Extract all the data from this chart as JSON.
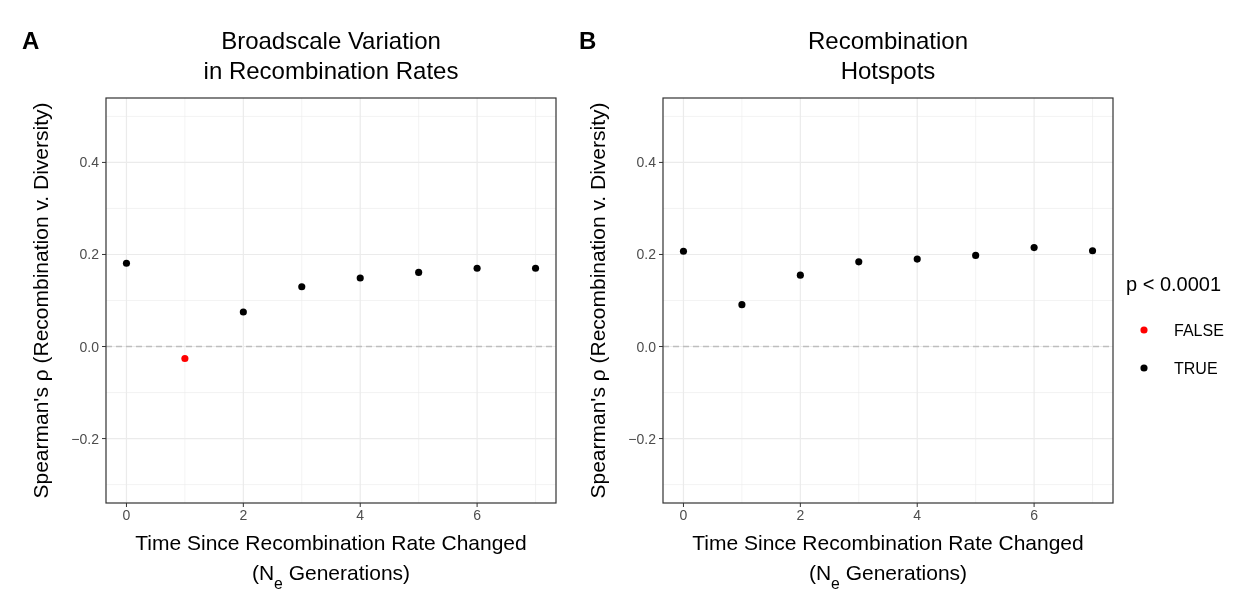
{
  "chart_data": [
    {
      "type": "scatter",
      "title": "Broadscale Variation\nin Recombination Rates",
      "xlabel": "Time Since Recombination Rate Changed\n(N$_{e}$ Generations)",
      "ylabel": "Spearman's ρ (Recombination v. Diversity)",
      "annotations": [
        "A"
      ],
      "series": [
        {
          "color": "#ff0000",
          "x": [
            1
          ],
          "values": [
            -0.026
          ]
        },
        {
          "color": "#000000",
          "x": [
            0,
            2,
            3,
            4,
            5,
            6,
            7
          ],
          "values": [
            0.181,
            0.075,
            0.13,
            0.149,
            0.161,
            0.17,
            0.17
          ]
        }
      ],
      "xlim": [
        -0.35,
        7.35
      ],
      "ylim": [
        -0.34,
        0.54
      ],
      "xticks": [
        0,
        {
          "value": 1,
          "label": null
        },
        2,
        {
          "value": 3,
          "label": null
        },
        4,
        {
          "value": 5,
          "label": null
        },
        6,
        {
          "value": 7,
          "label": null
        }
      ],
      "yticks": [
        {
          "value": -0.3,
          "label": null
        },
        {
          "value": -0.2,
          "label": "−0.2"
        },
        {
          "value": -0.1,
          "label": null
        },
        {
          "value": 0,
          "label": "0.0"
        },
        {
          "value": 0.1,
          "label": null
        },
        {
          "value": 0.2,
          "label": "0.2"
        },
        {
          "value": 0.3,
          "label": null
        },
        {
          "value": 0.4,
          "label": "0.4"
        },
        {
          "value": 0.5,
          "label": null
        }
      ],
      "ref_lines": [
        {
          "axis": "y",
          "value": 0,
          "color": "#bebebe",
          "line_style": "dashed"
        }
      ],
      "grid": true,
      "marker": "circle",
      "legend": false
    },
    {
      "type": "scatter",
      "title": "Recombination\nHotspots",
      "xlabel": "Time Since Recombination Rate Changed\n(N$_{e}$ Generations)",
      "ylabel": "Spearman's ρ (Recombination v. Diversity)",
      "annotations": [
        "B"
      ],
      "legend_title": "p < 0.0001",
      "series": [
        {
          "name": "FALSE",
          "color": "#ff0000"
        },
        {
          "name": "TRUE",
          "color": "#000000",
          "x": [
            0,
            1,
            2,
            3,
            4,
            5,
            6,
            7
          ],
          "values": [
            0.207,
            0.091,
            0.155,
            0.184,
            0.19,
            0.198,
            0.215,
            0.208
          ]
        }
      ],
      "xlim": [
        -0.35,
        7.35
      ],
      "ylim": [
        -0.34,
        0.54
      ],
      "xticks": [
        0,
        {
          "value": 1,
          "label": null
        },
        2,
        {
          "value": 3,
          "label": null
        },
        4,
        {
          "value": 5,
          "label": null
        },
        6,
        {
          "value": 7,
          "label": null
        }
      ],
      "yticks": [
        {
          "value": -0.3,
          "label": null
        },
        {
          "value": -0.2,
          "label": "−0.2"
        },
        {
          "value": -0.1,
          "label": null
        },
        {
          "value": 0,
          "label": "0.0"
        },
        {
          "value": 0.1,
          "label": null
        },
        {
          "value": 0.2,
          "label": "0.2"
        },
        {
          "value": 0.3,
          "label": null
        },
        {
          "value": 0.4,
          "label": "0.4"
        },
        {
          "value": 0.5,
          "label": null
        }
      ],
      "ref_lines": [
        {
          "axis": "y",
          "value": 0,
          "color": "#bebebe",
          "line_style": "dashed"
        }
      ],
      "grid": true,
      "marker": "circle",
      "legend": "right"
    }
  ]
}
